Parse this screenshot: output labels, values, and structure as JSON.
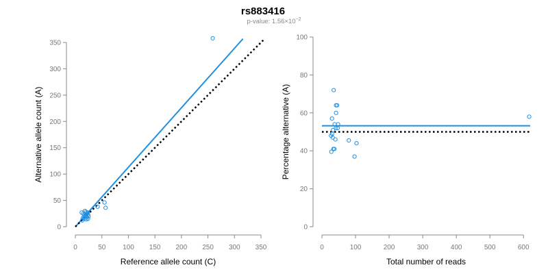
{
  "figure": {
    "title": "rs883416",
    "subtitle_prefix": "p-value: 1.56×10",
    "subtitle_exponent": "−2"
  },
  "colors": {
    "point": "#1f8fe0",
    "fit_line": "#1f8fe0",
    "reference_line": "#000000",
    "axis": "#888888"
  },
  "chart_data": [
    {
      "type": "scatter",
      "xlabel": "Reference allele count (C)",
      "ylabel": "Alternative allele count (A)",
      "xlim": [
        0,
        350
      ],
      "ylim": [
        0,
        350
      ],
      "xticks": [
        0,
        50,
        100,
        150,
        200,
        250,
        300,
        350
      ],
      "yticks": [
        0,
        50,
        100,
        150,
        200,
        250,
        300,
        350
      ],
      "grid": false,
      "series": [
        {
          "points": [
            [
              259,
              358
            ],
            [
              55,
              46
            ],
            [
              57,
              36
            ],
            [
              42,
              38
            ],
            [
              12,
              27
            ],
            [
              18,
              30
            ],
            [
              20,
              28
            ],
            [
              22,
              25
            ],
            [
              24,
              23
            ],
            [
              20,
              22
            ],
            [
              18,
              20
            ],
            [
              16,
              19
            ],
            [
              14,
              16
            ],
            [
              22,
              18
            ],
            [
              25,
              20
            ],
            [
              19,
              24
            ],
            [
              23,
              27
            ],
            [
              13,
              12
            ],
            [
              21,
              14
            ],
            [
              17,
              15
            ],
            [
              24,
              15
            ],
            [
              15,
              25
            ]
          ]
        }
      ],
      "lines": [
        {
          "kind": "fit",
          "style": "solid",
          "x": [
            0,
            316
          ],
          "y": [
            0,
            357
          ]
        },
        {
          "kind": "reference",
          "style": "dotted",
          "x": [
            0,
            356
          ],
          "y": [
            0,
            356
          ]
        }
      ]
    },
    {
      "type": "scatter",
      "xlabel": "Total number of reads",
      "ylabel": "Percentage alternative (A)",
      "xlim": [
        0,
        620
      ],
      "ylim": [
        0,
        100
      ],
      "xticks": [
        0,
        100,
        200,
        300,
        400,
        500,
        600
      ],
      "yticks": [
        0,
        20,
        40,
        60,
        80,
        100
      ],
      "grid": false,
      "series": [
        {
          "points": [
            [
              617,
              58
            ],
            [
              35,
              72
            ],
            [
              42,
              64
            ],
            [
              45,
              64
            ],
            [
              42,
              60
            ],
            [
              30,
              57
            ],
            [
              38,
              54
            ],
            [
              48,
              54
            ],
            [
              42,
              52
            ],
            [
              47,
              52
            ],
            [
              33,
              51
            ],
            [
              30,
              49
            ],
            [
              27,
              48
            ],
            [
              32,
              47
            ],
            [
              40,
              46
            ],
            [
              80,
              45.5
            ],
            [
              103,
              44
            ],
            [
              37,
              41
            ],
            [
              34,
              41
            ],
            [
              28,
              39.5
            ],
            [
              97,
              37
            ]
          ]
        }
      ],
      "lines": [
        {
          "kind": "fit",
          "style": "solid",
          "x": [
            0,
            620
          ],
          "y": [
            53.2,
            53.2
          ]
        },
        {
          "kind": "reference",
          "style": "dotted",
          "x": [
            0,
            620
          ],
          "y": [
            50,
            50
          ]
        }
      ]
    }
  ]
}
